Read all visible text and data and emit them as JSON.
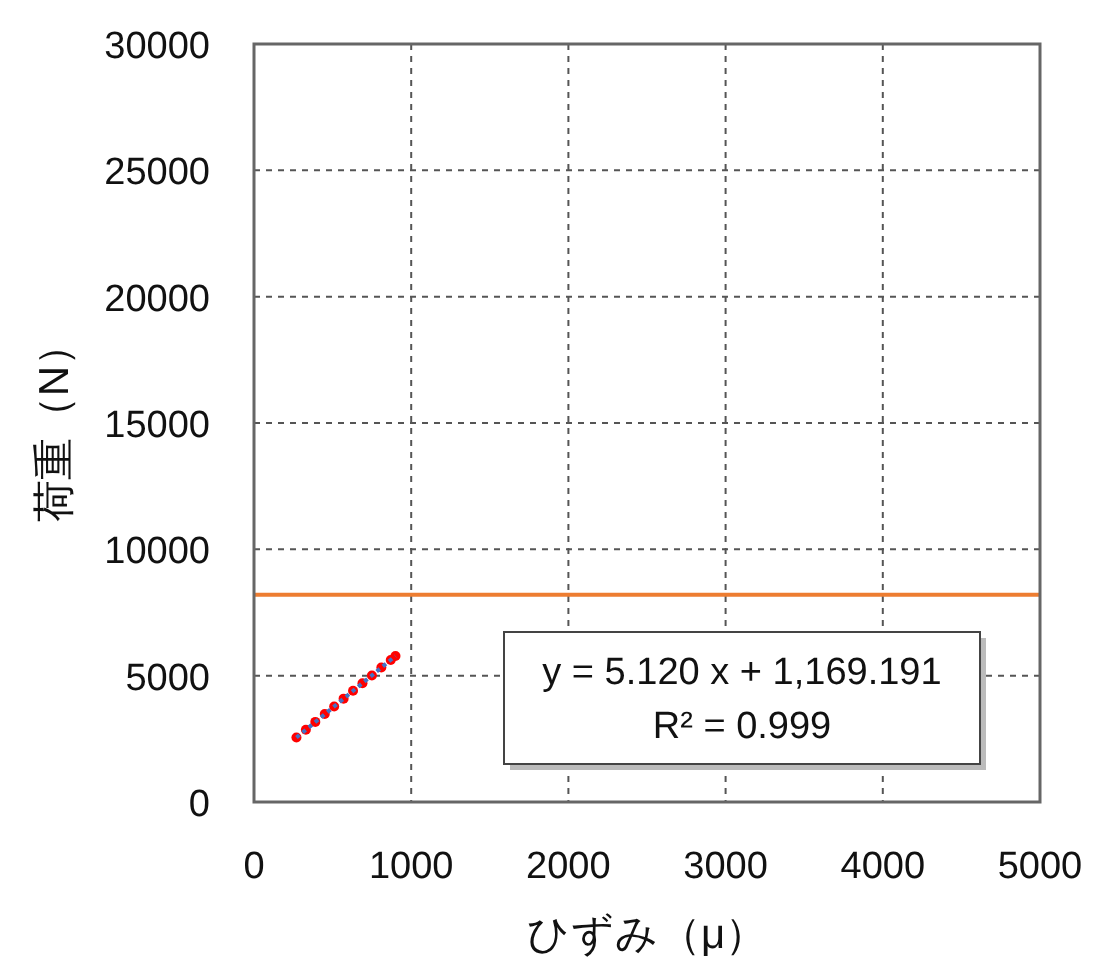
{
  "chart_data": {
    "type": "scatter",
    "xlabel": "ひずみ（μ）",
    "ylabel": "荷重（N）",
    "xlim": [
      0,
      5000
    ],
    "xticks": [
      0,
      1000,
      2000,
      3000,
      4000,
      5000
    ],
    "ylim": [
      0,
      30000
    ],
    "yticks": [
      0,
      5000,
      10000,
      15000,
      20000,
      25000,
      30000
    ],
    "grid": true,
    "marker": "circle",
    "series": [
      {
        "color": "#ff0000",
        "x": [
          270,
          330,
          390,
          450,
          510,
          570,
          630,
          690,
          750,
          810,
          870,
          900
        ],
        "values": [
          2550,
          2860,
          3170,
          3480,
          3780,
          4090,
          4400,
          4700,
          5010,
          5320,
          5620,
          5780
        ]
      },
      {
        "type": "line",
        "color": "#4472c4",
        "line_style": "dotted",
        "marker": "none",
        "x": [
          270,
          900
        ],
        "values": [
          2550,
          5780
        ]
      }
    ],
    "ref_lines": [
      {
        "axis": "y",
        "value": 8200,
        "color": "#ed7d31"
      }
    ],
    "annotations": [
      "y = 5.120 x + 1,169.191",
      "R² = 0.999"
    ]
  }
}
